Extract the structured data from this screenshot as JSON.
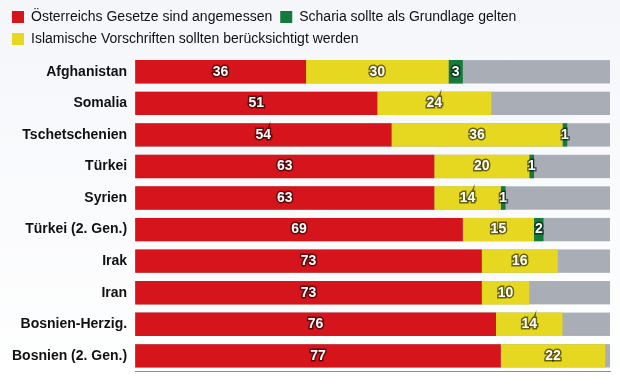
{
  "chart_data": {
    "type": "bar",
    "orientation": "horizontal",
    "stacked": true,
    "data_labels": true,
    "tick_labels": "y",
    "grid": false,
    "legend": "top left",
    "categories": [
      "Afghanistan",
      "Somalia",
      "Tschetschenien",
      "Türkei",
      "Syrien",
      "Türkei (2. Gen.)",
      "Irak",
      "Iran",
      "Bosnien-Herzig.",
      "Bosnien (2. Gen.)"
    ],
    "series": [
      {
        "name": "Österreichs Gesetze sind angemessen",
        "color": "#d5141b",
        "values": [
          36,
          51,
          54,
          63,
          63,
          69,
          73,
          73,
          76,
          77
        ]
      },
      {
        "name": "Islamische Vorschriften sollten berücksichtigt werden",
        "color": "#e6d820",
        "values": [
          30,
          24,
          36,
          20,
          14,
          15,
          16,
          10,
          14,
          22
        ]
      },
      {
        "name": "Scharia sollte als Grundlage gelten",
        "color": "#157a3c",
        "values": [
          3,
          null,
          1,
          1,
          1,
          2,
          null,
          null,
          null,
          null
        ]
      }
    ],
    "xlim": [
      0,
      100
    ]
  }
}
